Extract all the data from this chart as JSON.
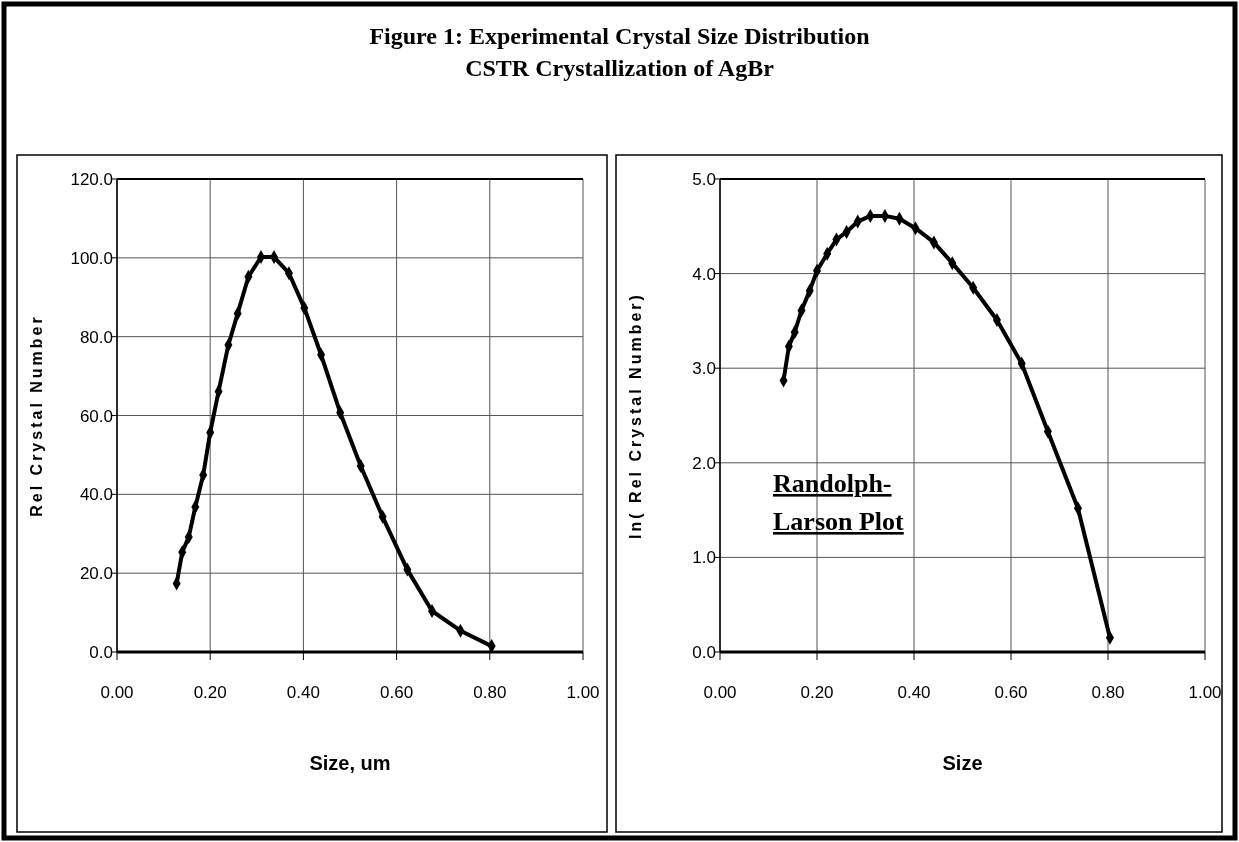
{
  "chart_data": [
    {
      "type": "line",
      "title": "Figure 1: Experimental Crystal Size Distribution",
      "subtitle": "CSTR Crystallization of AgBr",
      "xlabel": "Size, um",
      "ylabel": "Rel Crystal Number",
      "x": [
        0.128,
        0.14,
        0.154,
        0.168,
        0.185,
        0.2,
        0.218,
        0.239,
        0.259,
        0.282,
        0.309,
        0.337,
        0.369,
        0.402,
        0.438,
        0.479,
        0.523,
        0.57,
        0.623,
        0.676,
        0.737,
        0.804
      ],
      "values": [
        17.4,
        25.3,
        29.2,
        36.8,
        44.9,
        55.7,
        66.1,
        77.9,
        85.9,
        95.2,
        100.2,
        100.2,
        96.1,
        87.3,
        75.4,
        60.7,
        47.2,
        34.3,
        20.9,
        10.4,
        5.4,
        1.5
      ],
      "color": "#000000",
      "marker": "diamond",
      "line_style": "solid",
      "grid": true,
      "xlim": [
        0,
        1
      ],
      "xticks": [
        {
          "value": 0,
          "label": "0.00"
        },
        {
          "value": 0.2,
          "label": "0.20"
        },
        {
          "value": 0.4,
          "label": "0.40"
        },
        {
          "value": 0.6,
          "label": "0.60"
        },
        {
          "value": 0.8,
          "label": "0.80"
        },
        {
          "value": 1,
          "label": "1.00"
        }
      ],
      "ylim": [
        0,
        120
      ],
      "yticks": [
        {
          "value": 0,
          "label": "0.0"
        },
        {
          "value": 20,
          "label": "20.0"
        },
        {
          "value": 40,
          "label": "40.0"
        },
        {
          "value": 60,
          "label": "60.0"
        },
        {
          "value": 80,
          "label": "80.0"
        },
        {
          "value": 100,
          "label": "100.0"
        },
        {
          "value": 120,
          "label": "120.0"
        }
      ]
    },
    {
      "type": "line",
      "xlabel": "Size",
      "ylabel": "ln( Rel Crystal Number)",
      "annotations": [
        "Randolph-Larson Plot"
      ],
      "x": [
        0.131,
        0.142,
        0.154,
        0.168,
        0.185,
        0.2,
        0.221,
        0.24,
        0.261,
        0.284,
        0.31,
        0.34,
        0.37,
        0.403,
        0.441,
        0.479,
        0.522,
        0.571,
        0.622,
        0.676,
        0.738,
        0.804
      ],
      "values": [
        2.87,
        3.23,
        3.38,
        3.61,
        3.82,
        4.03,
        4.21,
        4.36,
        4.44,
        4.55,
        4.61,
        4.61,
        4.58,
        4.48,
        4.33,
        4.11,
        3.85,
        3.51,
        3.05,
        2.33,
        1.52,
        0.15
      ],
      "color": "#000000",
      "marker": "diamond",
      "line_style": "solid",
      "grid": true,
      "xlim": [
        0,
        1
      ],
      "xticks": [
        {
          "value": 0,
          "label": "0.00"
        },
        {
          "value": 0.2,
          "label": "0.20"
        },
        {
          "value": 0.4,
          "label": "0.40"
        },
        {
          "value": 0.6,
          "label": "0.60"
        },
        {
          "value": 0.8,
          "label": "0.80"
        },
        {
          "value": 1,
          "label": "1.00"
        }
      ],
      "ylim": [
        0,
        5
      ],
      "yticks": [
        {
          "value": 0,
          "label": "0.0"
        },
        {
          "value": 1,
          "label": "1.0"
        },
        {
          "value": 2,
          "label": "2.0"
        },
        {
          "value": 3,
          "label": "3.0"
        },
        {
          "value": 4,
          "label": "4.0"
        },
        {
          "value": 5,
          "label": "5.0"
        }
      ]
    }
  ]
}
